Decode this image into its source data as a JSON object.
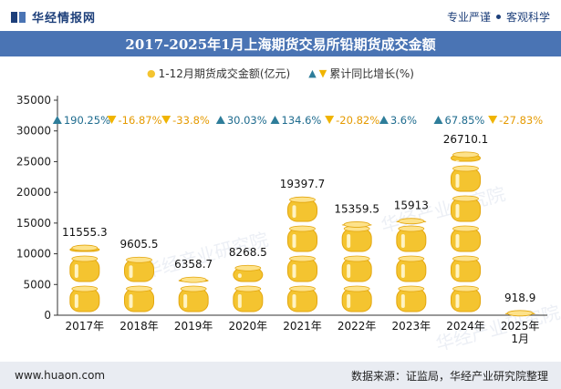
{
  "header": {
    "site_name": "华经情报网",
    "tagline_1": "专业严谨",
    "tagline_2": "客观科学"
  },
  "title": "2017-2025年1月上海期货交易所铅期货成交金额",
  "legend": {
    "amount_label": "1-12月期货成交金额(亿元)",
    "growth_label": "累计同比增长(%)"
  },
  "watermark": "华经产业研究院",
  "colors": {
    "title_bar": "#4a74b4",
    "coin_gold": "#f4c430",
    "up_arrow": "#2e7d9a",
    "down_arrow": "#f0b400",
    "up_text": "#1e6b8e",
    "down_text": "#e59a00"
  },
  "chart_data": {
    "type": "bar",
    "categories": [
      "2017年",
      "2018年",
      "2019年",
      "2020年",
      "2021年",
      "2022年",
      "2023年",
      "2024年",
      "2025年\n1月"
    ],
    "series": [
      {
        "name": "1-12月期货成交金额(亿元)",
        "values": [
          11555.3,
          9605.5,
          6358.7,
          8268.5,
          19397.7,
          15359.5,
          15913,
          26710.1,
          918.9
        ],
        "labels": [
          "11555.3",
          "9605.5",
          "6358.7",
          "8268.5",
          "19397.7",
          "15359.5",
          "15913",
          "26710.1",
          "918.9"
        ]
      },
      {
        "name": "累计同比增长(%)",
        "values": [
          190.25,
          -16.87,
          -33.8,
          30.03,
          134.6,
          -20.82,
          3.6,
          67.85,
          -27.83
        ],
        "labels": [
          "190.25%",
          "-16.87%",
          "-33.8%",
          "30.03%",
          "134.6%",
          "-20.82%",
          "3.6%",
          "67.85%",
          "-27.83%"
        ]
      }
    ],
    "y_ticks": [
      "0",
      "5000",
      "10000",
      "15000",
      "20000",
      "25000",
      "30000",
      "35000"
    ],
    "ylim": [
      0,
      35000
    ]
  },
  "footer": {
    "website": "www.huaon.com",
    "source": "数据来源：证监局，华经产业研究院整理"
  }
}
